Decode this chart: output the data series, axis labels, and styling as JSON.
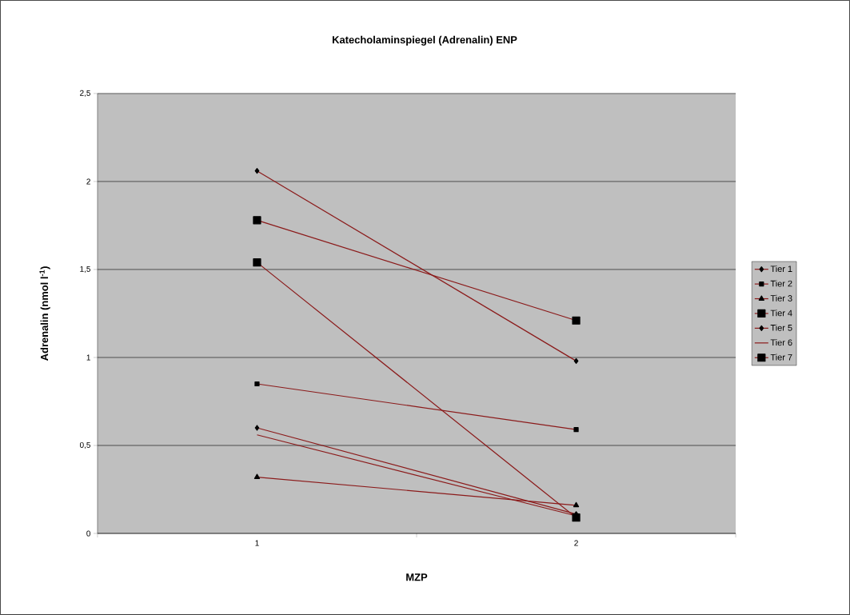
{
  "chart_data": {
    "type": "line",
    "title": "Katecholaminspiegel (Adrenalin) ENP",
    "xlabel": "MZP",
    "ylabel": "Adrenalin (nmol l$^{-1}$)",
    "categories": [
      "1",
      "2"
    ],
    "ylim": [
      0,
      2.5
    ],
    "yticks": [
      0,
      {
        "value": 0.5,
        "label": "0,5"
      },
      1,
      {
        "value": 1.5,
        "label": "1,5"
      },
      2,
      {
        "value": 2.5,
        "label": "2,5"
      }
    ],
    "grid": "y",
    "legend": "right",
    "line_style": "solid",
    "series": [
      {
        "name": "Tier 1",
        "color": "#8b1a1a",
        "marker": "diamond",
        "values": [
          2.06,
          0.98
        ]
      },
      {
        "name": "Tier 2",
        "color": "#8b1a1a",
        "marker": "square",
        "values": [
          0.85,
          0.59
        ]
      },
      {
        "name": "Tier 3",
        "color": "#8b1a1a",
        "marker": "triangle",
        "values": [
          0.32,
          0.16
        ]
      },
      {
        "name": "Tier 4",
        "color": "#8b1a1a",
        "marker": "square",
        "values": [
          1.78,
          1.21
        ]
      },
      {
        "name": "Tier 5",
        "color": "#8b1a1a",
        "marker": "diamond",
        "values": [
          0.6,
          0.11
        ]
      },
      {
        "name": "Tier 6",
        "color": "#8b1a1a",
        "marker": "none",
        "values": [
          0.56,
          0.1
        ]
      },
      {
        "name": "Tier 7",
        "color": "#8b1a1a",
        "marker": "square",
        "values": [
          1.54,
          0.09
        ]
      }
    ]
  }
}
